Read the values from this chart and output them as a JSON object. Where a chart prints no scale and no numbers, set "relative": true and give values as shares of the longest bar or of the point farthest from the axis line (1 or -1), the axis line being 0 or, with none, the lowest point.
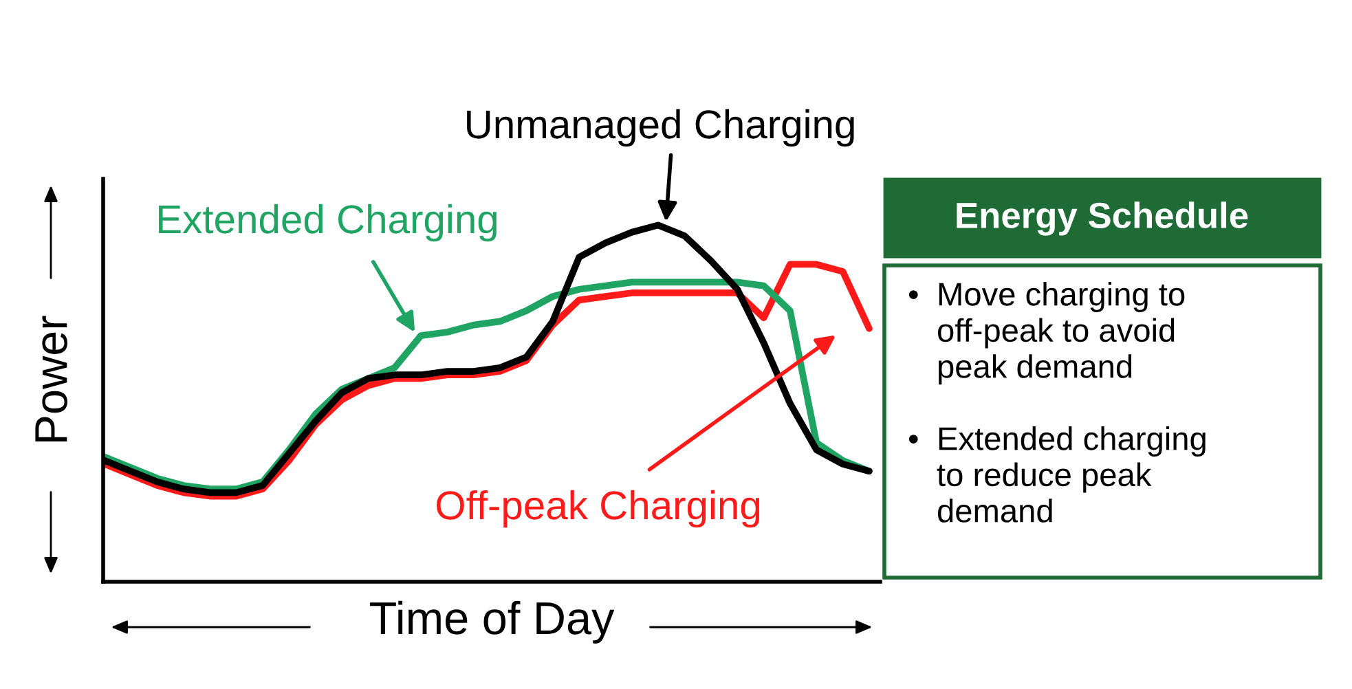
{
  "chart_data": {
    "type": "line",
    "relative": true,
    "xlabel": "Time of Day",
    "ylabel": "Power",
    "grid": false,
    "legend": false,
    "marker": "none",
    "line_style": "solid",
    "tick_labels": false,
    "categories": [
      null,
      null,
      null,
      null,
      null,
      null,
      null,
      null,
      null,
      null,
      null,
      null,
      null,
      null,
      null,
      null,
      null,
      null,
      null,
      null,
      null,
      null,
      null,
      null,
      null,
      null,
      null,
      null,
      null,
      null
    ],
    "series": [
      {
        "name": "Off-peak Charging",
        "color": "#ff1a1a",
        "values": [
          0.33,
          0.3,
          0.27,
          0.25,
          0.24,
          0.24,
          0.26,
          0.34,
          0.44,
          0.51,
          0.55,
          0.57,
          0.57,
          0.58,
          0.58,
          0.59,
          0.62,
          0.72,
          0.79,
          0.8,
          0.81,
          0.81,
          0.81,
          0.81,
          0.81,
          0.74,
          0.89,
          0.89,
          0.87,
          0.71
        ]
      },
      {
        "name": "Extended Charging",
        "color": "#1fa463",
        "values": [
          0.35,
          0.32,
          0.29,
          0.27,
          0.26,
          0.26,
          0.28,
          0.37,
          0.47,
          0.54,
          0.57,
          0.6,
          0.69,
          0.7,
          0.72,
          0.73,
          0.76,
          0.8,
          0.82,
          0.83,
          0.84,
          0.84,
          0.84,
          0.84,
          0.84,
          0.83,
          0.76,
          0.39,
          0.34,
          0.31
        ]
      },
      {
        "name": "Unmanaged Charging",
        "color": "#000000",
        "values": [
          0.34,
          0.31,
          0.28,
          0.26,
          0.25,
          0.25,
          0.27,
          0.36,
          0.45,
          0.53,
          0.57,
          0.58,
          0.58,
          0.59,
          0.59,
          0.6,
          0.63,
          0.73,
          0.91,
          0.95,
          0.98,
          1.0,
          0.97,
          0.9,
          0.82,
          0.67,
          0.5,
          0.37,
          0.33,
          0.31
        ]
      }
    ],
    "annotations": [
      "Energy Schedule",
      "• Move charging to\noff-peak to avoid\npeak demand",
      "• Extended charging\nto reduce peak\ndemand"
    ]
  }
}
